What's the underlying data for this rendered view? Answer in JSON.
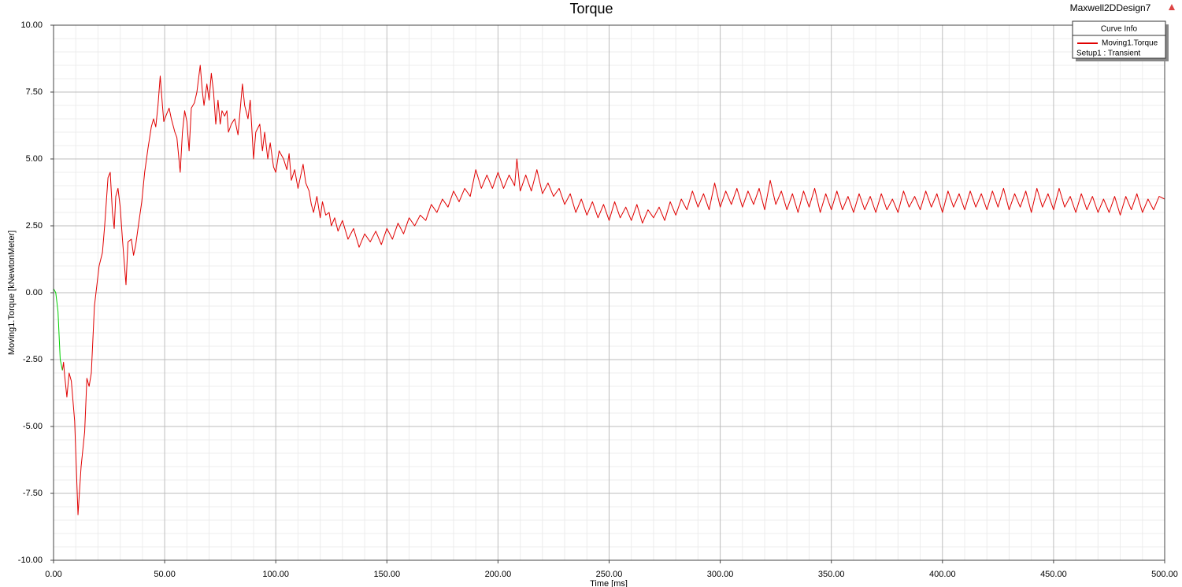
{
  "chart_data": {
    "type": "line",
    "title": "Torque",
    "design_name": "Maxwell2DDesign7",
    "x_label": "Time [ms]",
    "y_label": "Moving1.Torque [kNewtonMeter]",
    "legend_title": "Curve Info",
    "legend_subtitle": "Setup1 : Transient",
    "legend_position": "top-right",
    "grid": true,
    "xlim": [
      0,
      500
    ],
    "xticks": [
      {
        "value": 0,
        "label": "0.00"
      },
      {
        "value": 50,
        "label": "50.00"
      },
      {
        "value": 100,
        "label": "100.00"
      },
      {
        "value": 150,
        "label": "150.00"
      },
      {
        "value": 200,
        "label": "200.00"
      },
      {
        "value": 250,
        "label": "250.00"
      },
      {
        "value": 300,
        "label": "300.00"
      },
      {
        "value": 350,
        "label": "350.00"
      },
      {
        "value": 400,
        "label": "400.00"
      },
      {
        "value": 450,
        "label": "450.00"
      },
      {
        "value": 500,
        "label": "500.00"
      }
    ],
    "ylim": [
      -10,
      10
    ],
    "yticks": [
      {
        "value": -10,
        "label": "-10.00"
      },
      {
        "value": -7.5,
        "label": "-7.50"
      },
      {
        "value": -5,
        "label": "-5.00"
      },
      {
        "value": -2.5,
        "label": "-2.50"
      },
      {
        "value": 0,
        "label": "0.00"
      },
      {
        "value": 2.5,
        "label": "2.50"
      },
      {
        "value": 5,
        "label": "5.00"
      },
      {
        "value": 7.5,
        "label": "7.50"
      },
      {
        "value": 10,
        "label": "10.00"
      }
    ],
    "series": [
      {
        "name": "Moving1.Torque",
        "color": "#e00000",
        "x": [
          4,
          4.5,
          5,
          6,
          7,
          8,
          9.5,
          11,
          12.4,
          14,
          15,
          16,
          17,
          18.4,
          20.5,
          22,
          23,
          24.5,
          25.5,
          26.5,
          27.3,
          28,
          29,
          30,
          31,
          32.6,
          33.5,
          35,
          36,
          37,
          38.5,
          39.7,
          41,
          42.5,
          44,
          45,
          46,
          47,
          48,
          49,
          49.6,
          51,
          52,
          53,
          54.6,
          55.5,
          57,
          58,
          59,
          60,
          61,
          62,
          63.4,
          64.5,
          66,
          67,
          67.7,
          69,
          70,
          71,
          72,
          73,
          74,
          75,
          75.8,
          77,
          78,
          78.7,
          80,
          81.5,
          83,
          85,
          86,
          87.5,
          88.5,
          90,
          91,
          92.8,
          94,
          95,
          96.4,
          97.5,
          99,
          100,
          101.5,
          103.5,
          105,
          106,
          107,
          108.5,
          110,
          112.3,
          113.5,
          115,
          116,
          117,
          118.5,
          120,
          121,
          122.5,
          124,
          125,
          126.5,
          128,
          130,
          132.5,
          135,
          137.5,
          140,
          142.5,
          145,
          147.5,
          150,
          152.5,
          155,
          157.5,
          160,
          162.5,
          165,
          167.5,
          170,
          172.5,
          175,
          177.5,
          180,
          182.5,
          185,
          187.5,
          190,
          192.5,
          195,
          197.5,
          200,
          202.5,
          205,
          207.5,
          208.5,
          210,
          212.5,
          215,
          217.5,
          220,
          222.5,
          225,
          227.5,
          230,
          232.5,
          235,
          237.5,
          240,
          242.5,
          245,
          247.5,
          250,
          252.5,
          255,
          257.5,
          260,
          262.5,
          265,
          267.5,
          270,
          272.5,
          275,
          277.5,
          280,
          282.5,
          285,
          287.5,
          290,
          292.5,
          295,
          297.5,
          300,
          302.5,
          305,
          307.5,
          310,
          312.5,
          315,
          317.5,
          320,
          322.5,
          325,
          327.5,
          330,
          332.5,
          335,
          337.5,
          340,
          342.5,
          345,
          347.5,
          350,
          352.5,
          355,
          357.5,
          360,
          362.5,
          365,
          367.5,
          370,
          372.5,
          375,
          377.5,
          380,
          382.5,
          385,
          387.5,
          390,
          392.5,
          395,
          397.5,
          400,
          402.5,
          405,
          407.5,
          410,
          412.5,
          415,
          417.5,
          420,
          422.5,
          425,
          427.5,
          430,
          432.5,
          435,
          437.5,
          440,
          442.5,
          445,
          447.5,
          450,
          452.5,
          455,
          457.5,
          460,
          462.5,
          465,
          467.5,
          470,
          472.5,
          475,
          477.5,
          480,
          482.5,
          485,
          487.5,
          490,
          492.5,
          495,
          497.5,
          500
        ],
        "values": [
          -2.9,
          -2.6,
          -3.1,
          -3.9,
          -3.0,
          -3.3,
          -4.8,
          -8.3,
          -6.5,
          -5.2,
          -3.2,
          -3.5,
          -3.0,
          -0.5,
          1.0,
          1.5,
          2.5,
          4.3,
          4.5,
          3.0,
          2.4,
          3.6,
          3.9,
          3.2,
          2.0,
          0.3,
          1.9,
          2.0,
          1.4,
          1.8,
          2.7,
          3.4,
          4.5,
          5.4,
          6.2,
          6.5,
          6.2,
          7.0,
          8.1,
          7.0,
          6.4,
          6.7,
          6.9,
          6.5,
          6.0,
          5.8,
          4.5,
          6.0,
          6.8,
          6.4,
          5.3,
          6.9,
          7.1,
          7.5,
          8.5,
          7.5,
          7.0,
          7.8,
          7.2,
          8.2,
          7.5,
          6.3,
          7.2,
          6.3,
          6.8,
          6.6,
          6.8,
          6.0,
          6.3,
          6.5,
          5.9,
          7.8,
          7.0,
          6.5,
          7.2,
          5.0,
          6.0,
          6.3,
          5.3,
          6.0,
          5.0,
          5.6,
          4.7,
          4.5,
          5.3,
          5.0,
          4.6,
          5.2,
          4.2,
          4.6,
          3.9,
          4.8,
          4.1,
          3.8,
          3.3,
          3.0,
          3.6,
          2.8,
          3.4,
          2.9,
          3.0,
          2.5,
          2.8,
          2.3,
          2.7,
          2.0,
          2.4,
          1.7,
          2.2,
          1.9,
          2.3,
          1.8,
          2.4,
          2.0,
          2.6,
          2.2,
          2.8,
          2.5,
          2.9,
          2.7,
          3.3,
          3.0,
          3.5,
          3.2,
          3.8,
          3.4,
          3.9,
          3.6,
          4.6,
          3.9,
          4.4,
          3.9,
          4.5,
          3.9,
          4.4,
          4.0,
          5.0,
          3.8,
          4.4,
          3.8,
          4.6,
          3.7,
          4.1,
          3.6,
          3.9,
          3.3,
          3.7,
          3.0,
          3.5,
          2.9,
          3.4,
          2.8,
          3.3,
          2.7,
          3.4,
          2.8,
          3.2,
          2.7,
          3.3,
          2.6,
          3.1,
          2.8,
          3.2,
          2.7,
          3.4,
          2.9,
          3.5,
          3.1,
          3.8,
          3.2,
          3.7,
          3.1,
          4.1,
          3.2,
          3.8,
          3.3,
          3.9,
          3.2,
          3.8,
          3.3,
          3.9,
          3.1,
          4.2,
          3.3,
          3.8,
          3.1,
          3.7,
          3.0,
          3.8,
          3.2,
          3.9,
          3.0,
          3.7,
          3.1,
          3.8,
          3.1,
          3.6,
          3.0,
          3.7,
          3.1,
          3.6,
          3.0,
          3.7,
          3.1,
          3.5,
          3.0,
          3.8,
          3.2,
          3.6,
          3.1,
          3.8,
          3.2,
          3.7,
          3.0,
          3.8,
          3.2,
          3.7,
          3.1,
          3.8,
          3.2,
          3.7,
          3.1,
          3.8,
          3.2,
          3.9,
          3.1,
          3.7,
          3.2,
          3.8,
          3.0,
          3.9,
          3.2,
          3.7,
          3.1,
          3.9,
          3.2,
          3.6,
          3.0,
          3.7,
          3.1,
          3.6,
          3.0,
          3.5,
          3.0,
          3.6,
          2.9,
          3.6,
          3.1,
          3.7,
          3.0,
          3.5,
          3.1,
          3.6,
          3.5
        ]
      },
      {
        "color": "#00d000",
        "x": [
          0,
          1,
          2,
          3,
          4
        ],
        "values": [
          0.15,
          0.0,
          -0.7,
          -2.5,
          -2.9
        ]
      }
    ]
  }
}
